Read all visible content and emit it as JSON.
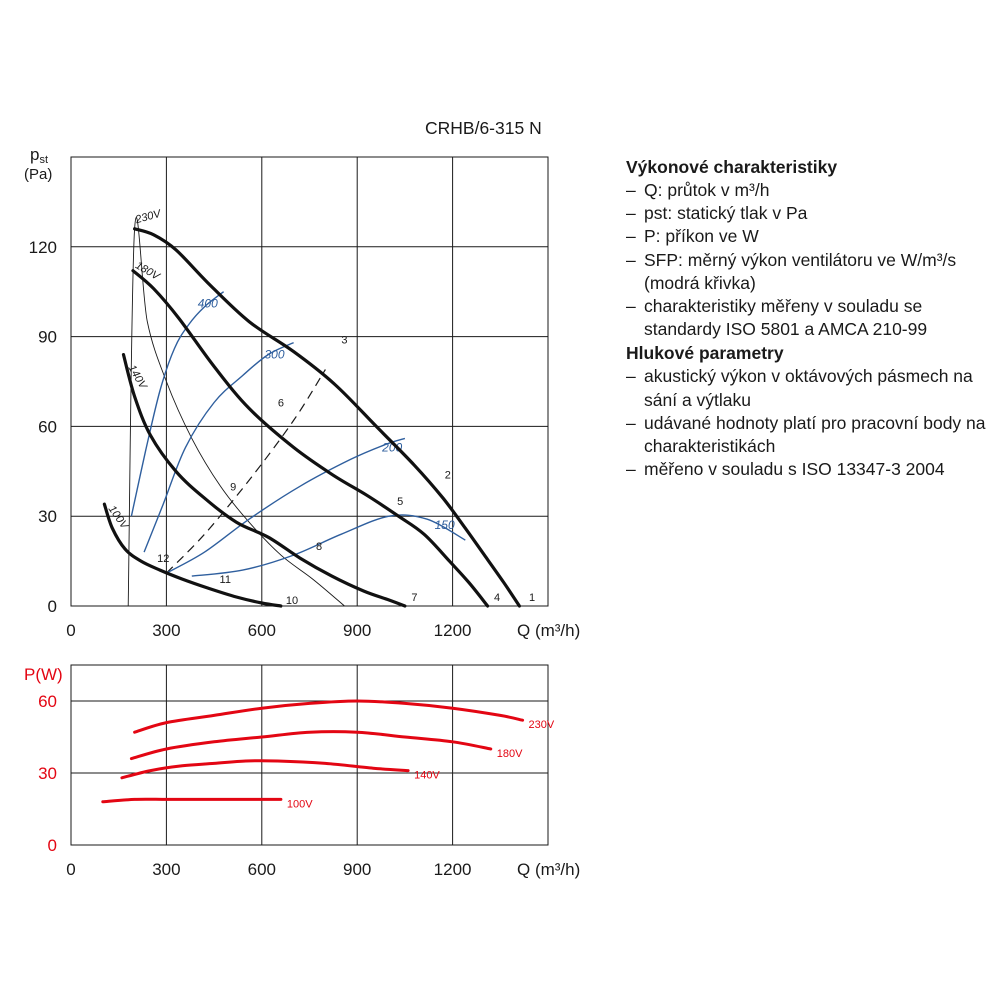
{
  "model": "CRHB/6-315 N",
  "chart_data": [
    {
      "type": "line",
      "ylabel": "pst",
      "ylabel_sub": "st",
      "ylabel_unit": "(Pa)",
      "xlabel": "Q (m³/h)",
      "xlim": [
        0,
        1500
      ],
      "ylim": [
        0,
        150
      ],
      "xticks": [
        0,
        300,
        600,
        900,
        1200
      ],
      "yticks": [
        0,
        30,
        60,
        90,
        120
      ],
      "grid": true,
      "voltage_curves": [
        {
          "name": "230V",
          "x": [
            200,
            260,
            330,
            430,
            560,
            700,
            830,
            960,
            1080,
            1170,
            1240,
            1300,
            1360,
            1410
          ],
          "y": [
            126,
            124,
            119,
            108,
            95,
            85,
            74,
            60,
            47,
            36,
            26,
            17,
            8,
            0
          ]
        },
        {
          "name": "180V",
          "x": [
            195,
            260,
            340,
            450,
            560,
            700,
            820,
            930,
            1030,
            1110,
            1190,
            1250,
            1310
          ],
          "y": [
            112,
            106,
            96,
            80,
            66,
            53,
            44,
            37,
            30,
            24,
            15,
            8,
            0
          ]
        },
        {
          "name": "140V",
          "x": [
            165,
            200,
            250,
            330,
            420,
            520,
            620,
            720,
            820,
            920,
            1000,
            1050
          ],
          "y": [
            84,
            70,
            57,
            45,
            36,
            28,
            23,
            16,
            10,
            5,
            2,
            0
          ]
        },
        {
          "name": "100V",
          "x": [
            105,
            130,
            170,
            220,
            280,
            350,
            430,
            520,
            600,
            660
          ],
          "y": [
            34,
            26,
            19,
            15,
            12,
            9,
            6,
            3,
            1,
            0
          ]
        }
      ],
      "system_curves": [
        {
          "x": [
            180,
            200,
            240,
            300,
            380,
            470,
            560,
            660,
            760,
            860
          ],
          "y": [
            0,
            126,
            95,
            75,
            56,
            40,
            28,
            17,
            9,
            0
          ],
          "style": "thin"
        },
        {
          "x": [
            300,
            420,
            560,
            700,
            800
          ],
          "y": [
            11,
            24,
            42,
            62,
            79
          ],
          "style": "dashed"
        }
      ],
      "sfp_curves": [
        {
          "label": "400",
          "x": [
            190,
            235,
            280,
            325,
            370,
            420,
            480
          ],
          "y": [
            30,
            52,
            72,
            86,
            94,
            100,
            105
          ]
        },
        {
          "label": "300",
          "x": [
            230,
            290,
            360,
            450,
            540,
            620,
            700
          ],
          "y": [
            18,
            34,
            53,
            68,
            77,
            84,
            88
          ]
        },
        {
          "label": "200",
          "x": [
            300,
            420,
            560,
            720,
            880,
            990,
            1050
          ],
          "y": [
            11,
            18,
            29,
            40,
            49,
            54,
            56
          ]
        },
        {
          "label": "150",
          "x": [
            380,
            540,
            700,
            850,
            1000,
            1120,
            1240
          ],
          "y": [
            10,
            12,
            17,
            24,
            30,
            29,
            22
          ]
        }
      ],
      "sfp_label_positions": [
        {
          "label": "400",
          "x": 430,
          "y": 101
        },
        {
          "label": "300",
          "x": 640,
          "y": 84
        },
        {
          "label": "200",
          "x": 1010,
          "y": 53
        },
        {
          "label": "150",
          "x": 1175,
          "y": 27
        }
      ],
      "point_labels": [
        {
          "label": "1",
          "x": 1450,
          "y": 3
        },
        {
          "label": "2",
          "x": 1185,
          "y": 44
        },
        {
          "label": "3",
          "x": 860,
          "y": 89
        },
        {
          "label": "4",
          "x": 1340,
          "y": 3
        },
        {
          "label": "5",
          "x": 1035,
          "y": 35
        },
        {
          "label": "6",
          "x": 660,
          "y": 68
        },
        {
          "label": "7",
          "x": 1080,
          "y": 3
        },
        {
          "label": "8",
          "x": 780,
          "y": 20
        },
        {
          "label": "9",
          "x": 510,
          "y": 40
        },
        {
          "label": "10",
          "x": 695,
          "y": 2
        },
        {
          "label": "11",
          "x": 485,
          "y": 9
        },
        {
          "label": "12",
          "x": 290,
          "y": 16
        }
      ],
      "curve_labels": [
        {
          "label": "230V",
          "x": 245,
          "y": 129,
          "angle": -15
        },
        {
          "label": "180V",
          "x": 235,
          "y": 111,
          "angle": 30
        },
        {
          "label": "140V",
          "x": 200,
          "y": 76,
          "angle": 60
        },
        {
          "label": "100V",
          "x": 140,
          "y": 29,
          "angle": 55
        }
      ]
    },
    {
      "type": "line",
      "ylabel": "P(W)",
      "xlabel": "Q (m³/h)",
      "xlim": [
        0,
        1500
      ],
      "ylim": [
        0,
        75
      ],
      "xticks": [
        0,
        300,
        600,
        900,
        1200
      ],
      "yticks": [
        0,
        30,
        60
      ],
      "grid": true,
      "color": "#e30613",
      "series": [
        {
          "name": "230V",
          "x": [
            200,
            300,
            450,
            600,
            750,
            900,
            1050,
            1200,
            1350,
            1420
          ],
          "y": [
            47,
            51,
            54,
            57,
            59,
            60,
            59,
            57,
            54,
            52
          ]
        },
        {
          "name": "180V",
          "x": [
            190,
            300,
            450,
            600,
            750,
            900,
            1050,
            1200,
            1320
          ],
          "y": [
            36,
            40,
            43,
            45,
            47,
            47,
            45,
            43,
            40
          ]
        },
        {
          "name": "140V",
          "x": [
            160,
            250,
            350,
            450,
            550,
            650,
            800,
            950,
            1060
          ],
          "y": [
            28,
            31,
            33,
            34,
            35,
            35,
            34,
            32,
            31
          ]
        },
        {
          "name": "100V",
          "x": [
            100,
            200,
            300,
            400,
            500,
            600,
            660
          ],
          "y": [
            18,
            19,
            19,
            19,
            19,
            19,
            19
          ]
        }
      ]
    }
  ],
  "side": {
    "section1_title": "Výkonové charakteristiky",
    "section1_items": [
      "Q: průtok v m³/h",
      "pst: statický tlak v Pa",
      "P: příkon ve W",
      "SFP: měrný výkon ventilátoru ve W/m³/s (modrá křivka)",
      "charakteristiky měřeny v souladu se standardy ISO 5801 a AMCA 210-99"
    ],
    "section2_title": "Hlukové parametry",
    "section2_items": [
      "akustický výkon v oktávových pásmech na sání a výtlaku",
      "udávané hodnoty platí pro pracovní body na charakteristikách",
      "měřeno v souladu s ISO 13347-3 2004"
    ]
  }
}
